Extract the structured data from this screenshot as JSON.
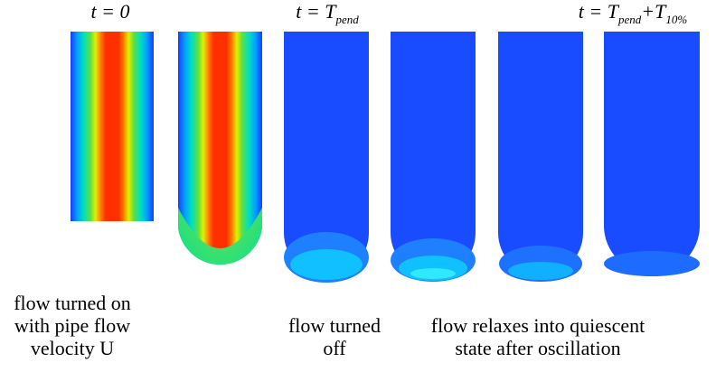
{
  "time_labels": [
    {
      "parts": [
        {
          "text": "t = 0"
        }
      ]
    },
    {
      "parts": [
        {
          "text": "t = T"
        },
        {
          "sub": "pend"
        }
      ]
    },
    {
      "parts": [
        {
          "text": "t = T"
        },
        {
          "sub": "pend"
        },
        {
          "text": "+T"
        },
        {
          "sub": "10%"
        }
      ]
    }
  ],
  "captions": [
    {
      "lines": [
        "flow turned on",
        "with pipe flow",
        "velocity U"
      ]
    },
    {
      "lines": [
        "flow turned",
        "off"
      ]
    },
    {
      "lines": [
        "flow relaxes into quiescent",
        "state after oscillation"
      ]
    }
  ]
}
